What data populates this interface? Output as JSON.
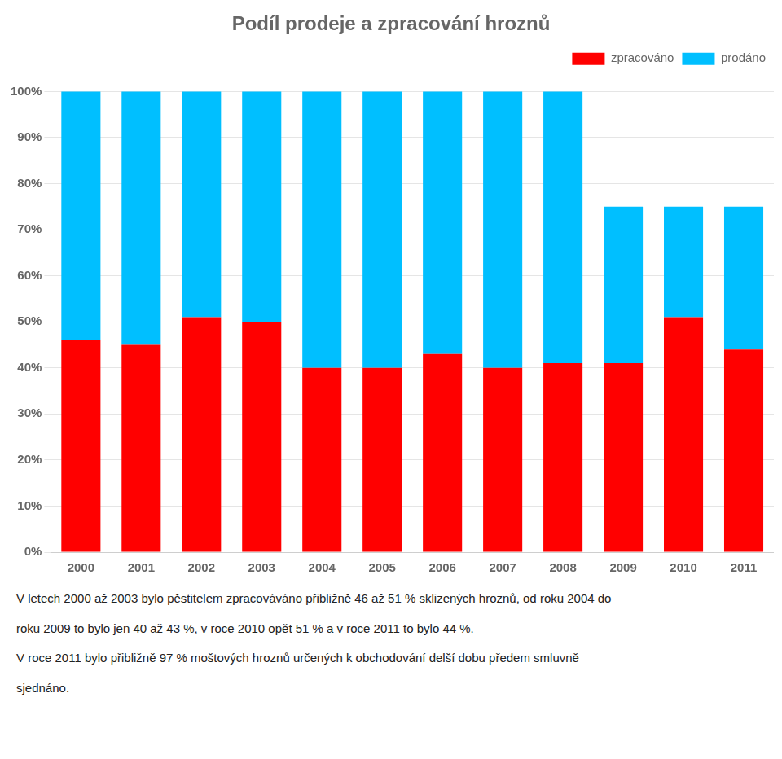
{
  "chart_data": {
    "type": "bar",
    "stacked": true,
    "title": "Podíl prodeje a zpracování hroznů",
    "categories": [
      2000,
      2001,
      2002,
      2003,
      2004,
      2005,
      2006,
      2007,
      2008,
      2009,
      2010,
      2011
    ],
    "series": [
      {
        "name": "zpracováno",
        "color": "#FF0000",
        "values": [
          46,
          45,
          51,
          50,
          40,
          40,
          43,
          40,
          41,
          41,
          51,
          44
        ]
      },
      {
        "name": "prodáno",
        "color": "#00BFFF",
        "values": [
          54,
          55,
          49,
          50,
          60,
          60,
          57,
          60,
          59,
          34,
          24,
          31
        ]
      }
    ],
    "ylim": [
      0,
      104
    ],
    "yticks": [
      {
        "value": 0,
        "label": "0%"
      },
      {
        "value": 10,
        "label": "10%"
      },
      {
        "value": 20,
        "label": "20%"
      },
      {
        "value": 30,
        "label": "30%"
      },
      {
        "value": 40,
        "label": "40%"
      },
      {
        "value": 50,
        "label": "50%"
      },
      {
        "value": 60,
        "label": "60%"
      },
      {
        "value": 70,
        "label": "70%"
      },
      {
        "value": 80,
        "label": "80%"
      },
      {
        "value": 90,
        "label": "90%"
      },
      {
        "value": 100,
        "label": "100%"
      }
    ],
    "grid": true,
    "legend": "upper right",
    "annotations": [
      "V letech 2000 až 2003 bylo pěstitelem zpracováváno přibližně 46 až 51 % sklizených hroznů, od roku 2004 do",
      "roku 2009 to bylo jen 40 až 43 %, v roce 2010 opět 51 % a v roce 2011 to bylo 44 %.",
      "V roce 2011 bylo přibližně 97 % moštových hroznů určených k obchodování delší dobu předem smluvně",
      "sjednáno."
    ]
  }
}
